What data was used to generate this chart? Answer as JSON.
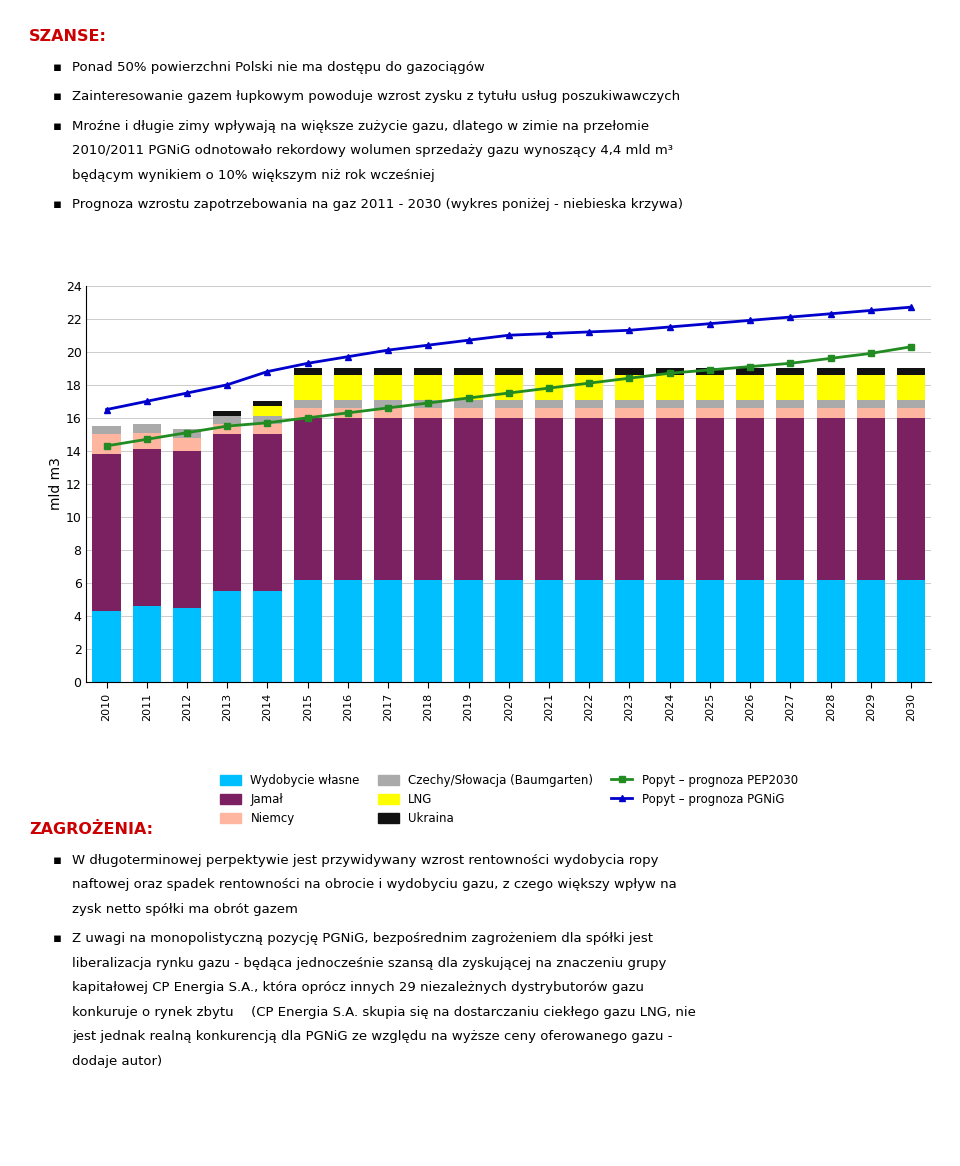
{
  "years": [
    2010,
    2011,
    2012,
    2013,
    2014,
    2015,
    2016,
    2017,
    2018,
    2019,
    2020,
    2021,
    2022,
    2023,
    2024,
    2025,
    2026,
    2027,
    2028,
    2029,
    2030
  ],
  "wydobycie": [
    4.3,
    4.6,
    4.5,
    5.5,
    5.5,
    6.2,
    6.2,
    6.2,
    6.2,
    6.2,
    6.2,
    6.2,
    6.2,
    6.2,
    6.2,
    6.2,
    6.2,
    6.2,
    6.2,
    6.2,
    6.2
  ],
  "jamal": [
    9.5,
    9.5,
    9.5,
    9.5,
    9.5,
    9.8,
    9.8,
    9.8,
    9.8,
    9.8,
    9.8,
    9.8,
    9.8,
    9.8,
    9.8,
    9.8,
    9.8,
    9.8,
    9.8,
    9.8,
    9.8
  ],
  "niemcy": [
    1.2,
    1.0,
    0.8,
    0.6,
    0.6,
    0.6,
    0.6,
    0.6,
    0.6,
    0.6,
    0.6,
    0.6,
    0.6,
    0.6,
    0.6,
    0.6,
    0.6,
    0.6,
    0.6,
    0.6,
    0.6
  ],
  "czechy": [
    0.5,
    0.5,
    0.5,
    0.5,
    0.5,
    0.5,
    0.5,
    0.5,
    0.5,
    0.5,
    0.5,
    0.5,
    0.5,
    0.5,
    0.5,
    0.5,
    0.5,
    0.5,
    0.5,
    0.5,
    0.5
  ],
  "lng": [
    0.0,
    0.0,
    0.0,
    0.0,
    0.6,
    1.5,
    1.5,
    1.5,
    1.5,
    1.5,
    1.5,
    1.5,
    1.5,
    1.5,
    1.5,
    1.5,
    1.5,
    1.5,
    1.5,
    1.5,
    1.5
  ],
  "ukraina": [
    0.0,
    0.0,
    0.0,
    0.3,
    0.3,
    0.4,
    0.4,
    0.4,
    0.4,
    0.4,
    0.4,
    0.4,
    0.4,
    0.4,
    0.4,
    0.4,
    0.4,
    0.4,
    0.4,
    0.4,
    0.4
  ],
  "pep2030": [
    14.3,
    14.7,
    15.1,
    15.5,
    15.7,
    16.0,
    16.3,
    16.6,
    16.9,
    17.2,
    17.5,
    17.8,
    18.1,
    18.4,
    18.7,
    18.9,
    19.1,
    19.3,
    19.6,
    19.9,
    20.3
  ],
  "pgnig": [
    16.5,
    17.0,
    17.5,
    18.0,
    18.8,
    19.3,
    19.7,
    20.1,
    20.4,
    20.7,
    21.0,
    21.1,
    21.2,
    21.3,
    21.5,
    21.7,
    21.9,
    22.1,
    22.3,
    22.5,
    22.7
  ],
  "color_wydobycie": "#00BFFF",
  "color_jamal": "#7B2060",
  "color_niemcy": "#FFB6A0",
  "color_czechy": "#AAAAAA",
  "color_lng": "#FFFF00",
  "color_ukraina": "#111111",
  "color_pep2030": "#228B22",
  "color_pgnig": "#0000CC",
  "ylabel": "mld m3",
  "ylim": [
    0,
    24
  ],
  "yticks": [
    0,
    2,
    4,
    6,
    8,
    10,
    12,
    14,
    16,
    18,
    20,
    22,
    24
  ],
  "legend_wydobycie": "Wydobycie własne",
  "legend_jamal": "Jamał",
  "legend_niemcy": "Niemcy",
  "legend_czechy": "Czechy/Słowacja (Baumgarten)",
  "legend_lng": "LNG",
  "legend_ukraina": "Ukraina",
  "legend_pep2030": "Popyt – prognoza PEP2030",
  "legend_pgnig": "Popyt – prognoza PGNiG",
  "title_szanse": "SZANSE:",
  "bullets_szanse": [
    "Ponad 50% powierzchni Polski nie ma dostępu do gazociągów",
    "Zainteresowanie gazem łupkowym powoduje wzrost zysku z tytułu usług poszukiwawczych",
    "Mroźne i długie zimy wpływają na większe zużycie gazu, dlatego w zimie na przełomie\n2010/2011 PGNiG odnotowało rekordowy wolumen sprzedaży gazu wynoszący 4,4 mld m³\nbędącym wynikiem o 10% większym niż rok wcześniej",
    "Prognoza wzrostu zapotrzebowania na gaz 2011 - 2030 (wykres poniżej - niebieska krzywa)"
  ],
  "title_zagrozenia": "ZAGROŻENIA:",
  "bullets_zagrozenia": [
    "W długoterminowej perpektywie jest przywidywany wzrost rentowności wydobycia ropy\nnaftowej oraz spadek rentowności na obrocie i wydobyciu gazu, z czego większy wpływ na\nzysk netto spółki ma obrót gazem",
    "Z uwagi na monopolistyczną pozycję PGNiG, bezpośrednim zagrożeniem dla spółki jest\nliberalizacja rynku gazu - będąca jednocześnie szansą dla zyskującej na znaczeniu grupy\nkapitałowej CP Energia S.A., która oprócz innych 29 niezależnych dystrybutorów gazu\nkonkuruje o rynek zbytu  (CP Energia S.A. skupia się na dostarczaniu ciekłego gazu LNG, nie\njest jednak realną konkurencją dla PGNiG ze względu na wyższe ceny oferowanego gazu -\ndodaje autor)"
  ],
  "background_color": "#FFFFFF",
  "page_width": 9.6,
  "page_height": 11.66
}
